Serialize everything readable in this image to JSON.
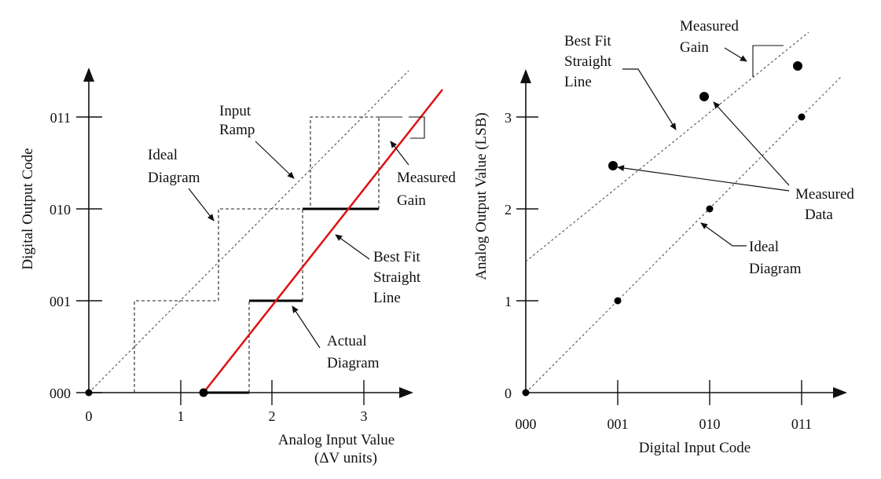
{
  "left": {
    "y_axis_title": "Digital Output Code",
    "x_axis_title_line1": "Analog  Input  Value",
    "x_axis_title_line2": "(ΔV units)",
    "y_ticks": [
      "000",
      "001",
      "010",
      "011"
    ],
    "x_ticks": [
      "0",
      "1",
      "2",
      "3"
    ],
    "labels": {
      "input_ramp": [
        "Input",
        "Ramp"
      ],
      "ideal_diagram": [
        "Ideal",
        "Diagram"
      ],
      "measured_gain": [
        "Measured",
        "Gain"
      ],
      "best_fit": [
        "Best Fit",
        "Straight",
        "Line"
      ],
      "actual_diagram": [
        "Actual",
        "Diagram"
      ]
    }
  },
  "right": {
    "y_axis_title": "Analog Output Value (LSB)",
    "x_axis_title": "Digital Input Code",
    "y_ticks": [
      "0",
      "1",
      "2",
      "3"
    ],
    "x_ticks": [
      "000",
      "001",
      "010",
      "011"
    ],
    "labels": {
      "measured_gain": [
        "Measured",
        "Gain"
      ],
      "best_fit": [
        "Best Fit",
        "Straight",
        "Line"
      ],
      "measured_data": [
        "Measured",
        "Data"
      ],
      "ideal_diagram": [
        "Ideal",
        "Diagram"
      ]
    }
  },
  "colors": {
    "best_fit_line": "#e01010",
    "ink": "#111111"
  }
}
